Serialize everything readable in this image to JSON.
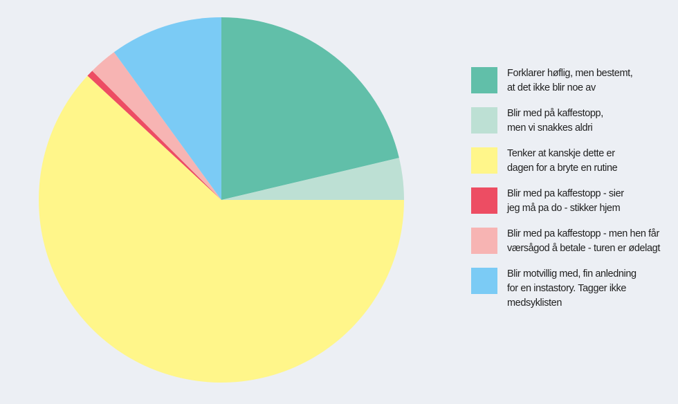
{
  "chart_data": {
    "type": "pie",
    "title": "",
    "start_angle_deg": 0,
    "direction": "clockwise",
    "legend_position": "right",
    "slices": [
      {
        "label": "Forklarer høflig, men bestemt,\nat det ikke blir noe av",
        "value": 21.3,
        "color": "#61bfa9"
      },
      {
        "label": "Blir med på kaffestopp,\nmen vi snakkes aldri",
        "value": 3.7,
        "color": "#bde0d4"
      },
      {
        "label": "Tenker at kanskje dette er\ndagen for a bryte en rutine",
        "value": 61.9,
        "color": "#fff68a"
      },
      {
        "label": "Blir med pa kaffestopp - sier\njeg må pa do - stikker hjem",
        "value": 0.6,
        "color": "#ed4d63"
      },
      {
        "label": "Blir med pa kaffestopp - men hen får\nværsågod å betale - turen er ødelagt",
        "value": 2.5,
        "color": "#f7b4b3"
      },
      {
        "label": "Blir motvillig med, fin anledning\nfor en instastory. Tagger ikke\nmedsyklisten",
        "value": 10.0,
        "color": "#7bcbf5"
      }
    ]
  }
}
